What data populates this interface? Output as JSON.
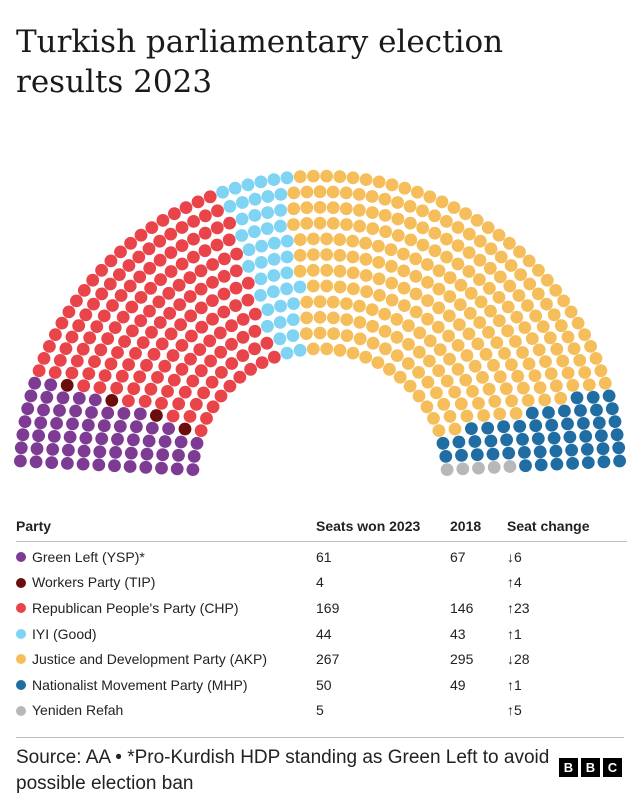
{
  "title": "Turkish parliamentary election results 2023",
  "table": {
    "headers": {
      "party": "Party",
      "won": "Seats won 2023",
      "prev": "2018",
      "change": "Seat change"
    }
  },
  "chart_data": {
    "type": "parliament",
    "title": "Turkish parliamentary election results 2023",
    "total_seats": 600,
    "parties": [
      {
        "name": "Green Left (YSP)*",
        "seats": 61,
        "seats_2018": 67,
        "change": "↓6",
        "color": "#7d3b93"
      },
      {
        "name": "Workers Party (TIP)",
        "seats": 4,
        "seats_2018": null,
        "change": "↑4",
        "color": "#6b0d0d"
      },
      {
        "name": "Republican People's Party (CHP)",
        "seats": 169,
        "seats_2018": 146,
        "change": "↑23",
        "color": "#e8444a"
      },
      {
        "name": "IYI (Good)",
        "seats": 44,
        "seats_2018": 43,
        "change": "↑1",
        "color": "#7fd3f3"
      },
      {
        "name": "Justice and Development Party (AKP)",
        "seats": 267,
        "seats_2018": 295,
        "change": "↓28",
        "color": "#f5be5a"
      },
      {
        "name": "Nationalist Movement Party (MHP)",
        "seats": 50,
        "seats_2018": 49,
        "change": "↑1",
        "color": "#1f6da3"
      },
      {
        "name": "Yeniden Refah",
        "seats": 5,
        "seats_2018": null,
        "change": "↑5",
        "color": "#b8b8b8"
      }
    ]
  },
  "source": "Source: AA • *Pro-Kurdish HDP standing as Green Left to avoid possible election ban",
  "logo": [
    "B",
    "B",
    "C"
  ]
}
